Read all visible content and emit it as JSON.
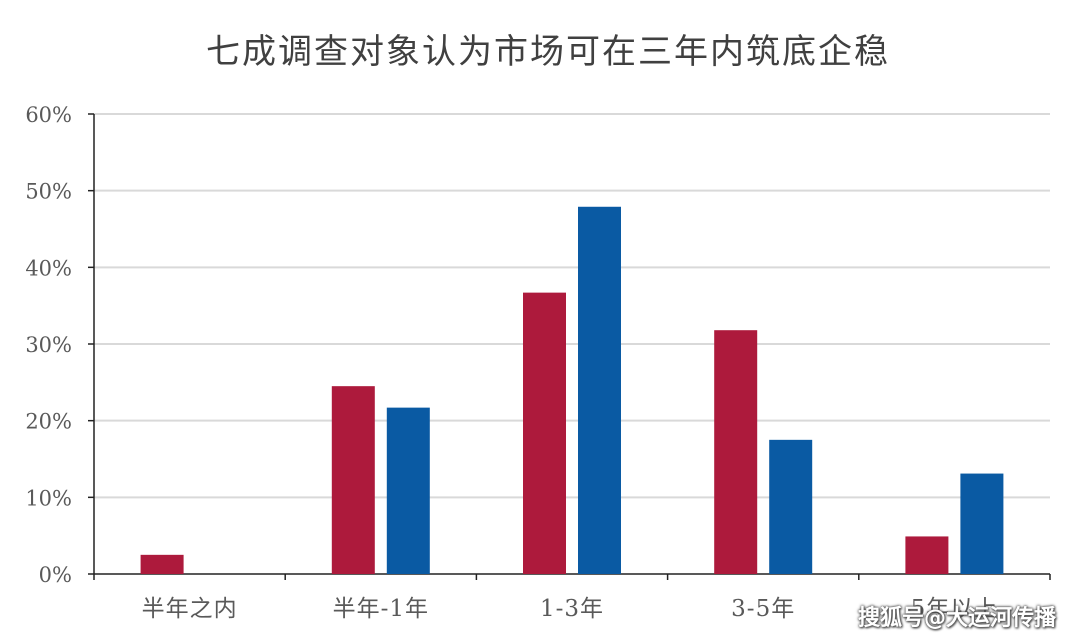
{
  "chart_data": {
    "type": "bar",
    "title": "七成调查对象认为市场可在三年内筑底企稳",
    "categories": [
      "半年之内",
      "半年-1年",
      "1-3年",
      "3-5年",
      "5年以上"
    ],
    "series": [
      {
        "color": "#ad1a3c",
        "values": [
          2.5,
          24.5,
          36.7,
          31.8,
          4.9
        ]
      },
      {
        "color": "#0a5aa3",
        "values": [
          0,
          21.7,
          47.9,
          17.5,
          13.1
        ]
      }
    ],
    "ylim": [
      0,
      60
    ],
    "yticks": [
      "0%",
      "10%",
      "20%",
      "30%",
      "40%",
      "50%",
      "60%"
    ],
    "grid": true
  },
  "watermark": "搜狐号@大运河传播"
}
